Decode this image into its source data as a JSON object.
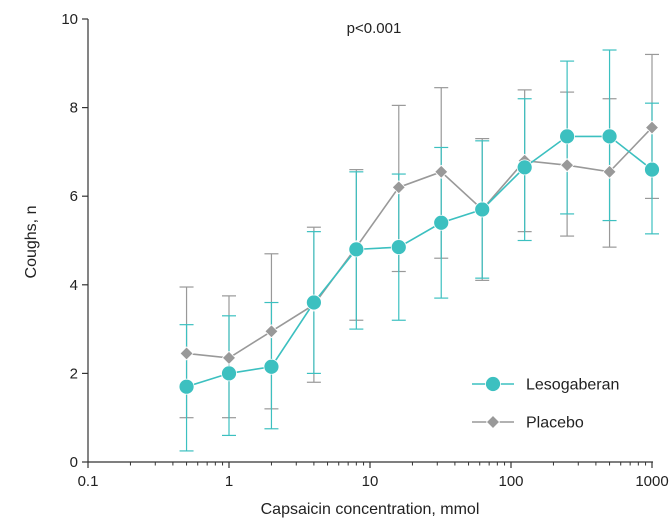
{
  "chart_data": {
    "type": "line",
    "title": "",
    "annotation": "p<0.001",
    "xlabel": "Capsaicin concentration, mmol",
    "ylabel": "Coughs, n",
    "x_scale": "log",
    "xlim": [
      0.1,
      1000
    ],
    "ylim": [
      0,
      10
    ],
    "x_ticks": [
      0.1,
      1,
      10,
      100,
      1000
    ],
    "x_tick_labels": [
      "0.1",
      "1",
      "10",
      "100",
      "1000"
    ],
    "y_ticks": [
      0,
      2,
      4,
      6,
      8,
      10
    ],
    "y_tick_labels": [
      "0",
      "2",
      "4",
      "6",
      "8",
      "10"
    ],
    "legend_position": "bottom-right",
    "x": [
      0.5,
      1,
      2,
      4,
      8,
      16,
      32,
      62.5,
      125,
      250,
      500,
      1000
    ],
    "series": [
      {
        "name": "Lesogaberan",
        "color": "#3cc0c0",
        "marker": "circle",
        "values": [
          1.7,
          2.0,
          2.15,
          3.6,
          4.8,
          4.85,
          5.4,
          5.7,
          6.65,
          7.35,
          7.35,
          6.6
        ],
        "error_low": [
          0.25,
          0.6,
          0.75,
          2.0,
          3.0,
          3.2,
          3.7,
          4.15,
          5.0,
          5.6,
          5.45,
          5.15
        ],
        "error_high": [
          3.1,
          3.3,
          3.6,
          5.2,
          6.55,
          6.5,
          7.1,
          7.25,
          8.2,
          9.05,
          9.3,
          8.1
        ]
      },
      {
        "name": "Placebo",
        "color": "#999999",
        "marker": "diamond",
        "values": [
          2.45,
          2.35,
          2.95,
          3.55,
          4.85,
          6.2,
          6.55,
          5.7,
          6.8,
          6.7,
          6.55,
          7.55
        ],
        "error_low": [
          1.0,
          1.0,
          1.2,
          1.8,
          3.2,
          4.3,
          4.6,
          4.1,
          5.2,
          5.1,
          4.85,
          5.95
        ],
        "error_high": [
          3.95,
          3.75,
          4.7,
          5.3,
          6.6,
          8.05,
          8.45,
          7.3,
          8.4,
          8.35,
          8.2,
          9.2
        ]
      }
    ]
  }
}
